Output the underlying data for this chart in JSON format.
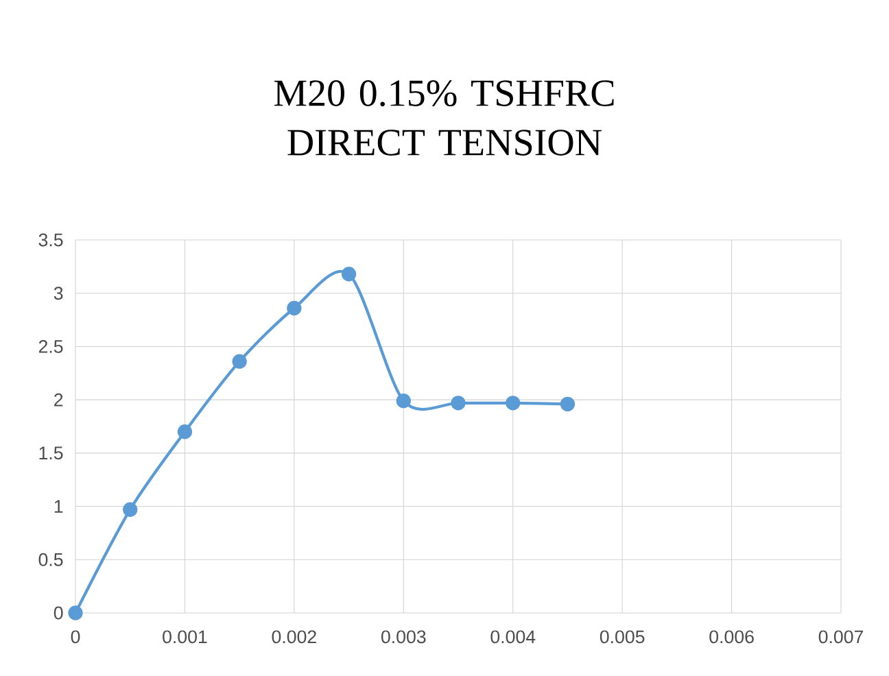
{
  "chart_data": {
    "type": "line",
    "title": "M20 0.15% TSHFRC DIRECT TENSION",
    "x": [
      0,
      0.0005,
      0.001,
      0.0015,
      0.002,
      0.0025,
      0.003,
      0.0035,
      0.004,
      0.0045
    ],
    "series": [
      {
        "color": "#5b9bd5",
        "values": [
          0,
          0.97,
          1.7,
          2.36,
          2.86,
          3.18,
          1.99,
          1.97,
          1.97,
          1.96
        ]
      }
    ],
    "xlim": [
      0,
      0.007
    ],
    "xticks": [
      0,
      0.001,
      0.002,
      0.003,
      0.004,
      0.005,
      0.006,
      0.007
    ],
    "ylim": [
      0,
      3.5
    ],
    "yticks": [
      0,
      0.5,
      1,
      1.5,
      2,
      2.5,
      3,
      3.5
    ],
    "grid": true,
    "marker": "circle",
    "line_style": "solid"
  }
}
